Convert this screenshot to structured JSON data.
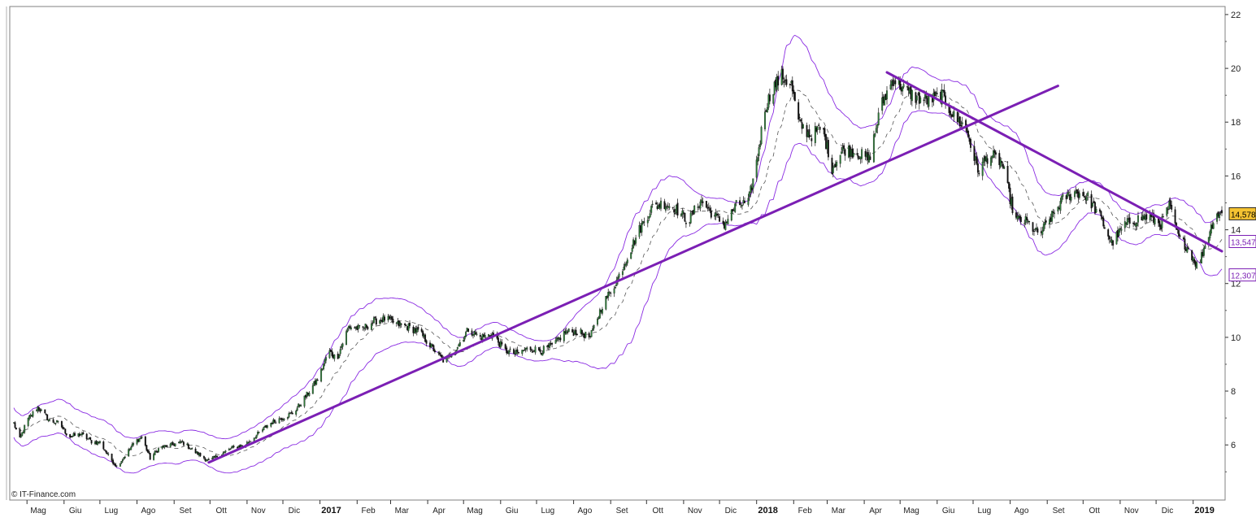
{
  "chart_data": {
    "type": "candlestick",
    "watermark": "© IT-Finance.com",
    "ylim": [
      4,
      22
    ],
    "y_ticks": [
      6,
      8,
      10,
      12,
      14,
      16,
      18,
      20,
      22
    ],
    "x_range": [
      "2016-04-20",
      "2019-01-25"
    ],
    "x_ticks": [
      {
        "date": "2016-05-05",
        "label": "Mag"
      },
      {
        "date": "2016-06-05",
        "label": "Giu"
      },
      {
        "date": "2016-07-05",
        "label": "Lug"
      },
      {
        "date": "2016-08-05",
        "label": "Ago"
      },
      {
        "date": "2016-09-05",
        "label": "Set"
      },
      {
        "date": "2016-10-05",
        "label": "Ott"
      },
      {
        "date": "2016-11-05",
        "label": "Nov"
      },
      {
        "date": "2016-12-05",
        "label": "Dic"
      },
      {
        "date": "2017-01-05",
        "label": "2017",
        "year": true
      },
      {
        "date": "2017-02-05",
        "label": "Feb"
      },
      {
        "date": "2017-03-05",
        "label": "Mar"
      },
      {
        "date": "2017-04-05",
        "label": "Apr"
      },
      {
        "date": "2017-05-05",
        "label": "Mag"
      },
      {
        "date": "2017-06-05",
        "label": "Giu"
      },
      {
        "date": "2017-07-05",
        "label": "Lug"
      },
      {
        "date": "2017-08-05",
        "label": "Ago"
      },
      {
        "date": "2017-09-05",
        "label": "Set"
      },
      {
        "date": "2017-10-05",
        "label": "Ott"
      },
      {
        "date": "2017-11-05",
        "label": "Nov"
      },
      {
        "date": "2017-12-05",
        "label": "Dic"
      },
      {
        "date": "2018-01-05",
        "label": "2018",
        "year": true
      },
      {
        "date": "2018-02-05",
        "label": "Feb"
      },
      {
        "date": "2018-03-05",
        "label": "Mar"
      },
      {
        "date": "2018-04-05",
        "label": "Apr"
      },
      {
        "date": "2018-05-05",
        "label": "Mag"
      },
      {
        "date": "2018-06-05",
        "label": "Giu"
      },
      {
        "date": "2018-07-05",
        "label": "Lug"
      },
      {
        "date": "2018-08-05",
        "label": "Ago"
      },
      {
        "date": "2018-09-05",
        "label": "Set"
      },
      {
        "date": "2018-10-05",
        "label": "Ott"
      },
      {
        "date": "2018-11-05",
        "label": "Nov"
      },
      {
        "date": "2018-12-05",
        "label": "Dic"
      },
      {
        "date": "2019-01-05",
        "label": "2019",
        "year": true
      }
    ],
    "price_path": [
      [
        "2016-04-20",
        6.8
      ],
      [
        "2016-04-25",
        6.2
      ],
      [
        "2016-05-01",
        6.9
      ],
      [
        "2016-05-10",
        7.4
      ],
      [
        "2016-05-20",
        6.9
      ],
      [
        "2016-05-28",
        6.8
      ],
      [
        "2016-06-05",
        6.3
      ],
      [
        "2016-06-15",
        6.4
      ],
      [
        "2016-06-25",
        6.1
      ],
      [
        "2016-07-01",
        6.1
      ],
      [
        "2016-07-08",
        5.6
      ],
      [
        "2016-07-15",
        5.2
      ],
      [
        "2016-07-22",
        5.6
      ],
      [
        "2016-07-30",
        6.1
      ],
      [
        "2016-08-05",
        6.3
      ],
      [
        "2016-08-12",
        5.5
      ],
      [
        "2016-08-20",
        5.9
      ],
      [
        "2016-08-30",
        6.0
      ],
      [
        "2016-09-08",
        6.1
      ],
      [
        "2016-09-20",
        5.7
      ],
      [
        "2016-09-30",
        5.4
      ],
      [
        "2016-10-08",
        5.6
      ],
      [
        "2016-10-20",
        5.9
      ],
      [
        "2016-10-30",
        6.0
      ],
      [
        "2016-11-10",
        6.4
      ],
      [
        "2016-11-20",
        6.8
      ],
      [
        "2016-11-30",
        7.0
      ],
      [
        "2016-12-10",
        7.2
      ],
      [
        "2016-12-20",
        7.8
      ],
      [
        "2016-12-31",
        8.5
      ],
      [
        "2017-01-08",
        9.5
      ],
      [
        "2017-01-15",
        9.2
      ],
      [
        "2017-01-25",
        10.4
      ],
      [
        "2017-02-05",
        10.3
      ],
      [
        "2017-02-15",
        10.6
      ],
      [
        "2017-02-25",
        10.7
      ],
      [
        "2017-03-05",
        10.5
      ],
      [
        "2017-03-15",
        10.4
      ],
      [
        "2017-03-25",
        10.2
      ],
      [
        "2017-04-05",
        9.6
      ],
      [
        "2017-04-15",
        9.1
      ],
      [
        "2017-04-25",
        9.6
      ],
      [
        "2017-05-05",
        10.3
      ],
      [
        "2017-05-15",
        10.0
      ],
      [
        "2017-05-25",
        10.1
      ],
      [
        "2017-06-05",
        9.5
      ],
      [
        "2017-06-15",
        9.4
      ],
      [
        "2017-06-25",
        9.6
      ],
      [
        "2017-07-05",
        9.5
      ],
      [
        "2017-07-15",
        9.7
      ],
      [
        "2017-07-25",
        10.2
      ],
      [
        "2017-08-05",
        10.2
      ],
      [
        "2017-08-15",
        10.0
      ],
      [
        "2017-08-25",
        11.2
      ],
      [
        "2017-09-05",
        12.0
      ],
      [
        "2017-09-15",
        13.0
      ],
      [
        "2017-09-25",
        14.0
      ],
      [
        "2017-10-05",
        14.8
      ],
      [
        "2017-10-15",
        15.0
      ],
      [
        "2017-10-25",
        14.8
      ],
      [
        "2017-11-05",
        14.3
      ],
      [
        "2017-11-15",
        15.1
      ],
      [
        "2017-11-25",
        14.6
      ],
      [
        "2017-12-05",
        14.2
      ],
      [
        "2017-12-15",
        14.9
      ],
      [
        "2017-12-25",
        15.0
      ],
      [
        "2018-01-01",
        16.5
      ],
      [
        "2018-01-08",
        18.5
      ],
      [
        "2018-01-15",
        19.3
      ],
      [
        "2018-01-22",
        19.7
      ],
      [
        "2018-01-30",
        19.4
      ],
      [
        "2018-02-05",
        18.0
      ],
      [
        "2018-02-15",
        17.5
      ],
      [
        "2018-02-25",
        17.8
      ],
      [
        "2018-03-05",
        16.3
      ],
      [
        "2018-03-15",
        17.0
      ],
      [
        "2018-03-25",
        16.9
      ],
      [
        "2018-04-05",
        16.6
      ],
      [
        "2018-04-15",
        18.6
      ],
      [
        "2018-04-25",
        19.6
      ],
      [
        "2018-05-05",
        19.2
      ],
      [
        "2018-05-15",
        18.9
      ],
      [
        "2018-05-25",
        18.8
      ],
      [
        "2018-06-05",
        19.0
      ],
      [
        "2018-06-15",
        18.2
      ],
      [
        "2018-06-25",
        17.8
      ],
      [
        "2018-07-05",
        16.2
      ],
      [
        "2018-07-15",
        16.8
      ],
      [
        "2018-07-25",
        16.5
      ],
      [
        "2018-08-05",
        14.4
      ],
      [
        "2018-08-15",
        14.3
      ],
      [
        "2018-08-25",
        13.8
      ],
      [
        "2018-09-05",
        14.5
      ],
      [
        "2018-09-15",
        15.2
      ],
      [
        "2018-09-25",
        15.4
      ],
      [
        "2018-10-05",
        15.2
      ],
      [
        "2018-10-15",
        14.5
      ],
      [
        "2018-10-25",
        13.5
      ],
      [
        "2018-11-05",
        14.2
      ],
      [
        "2018-11-15",
        14.4
      ],
      [
        "2018-11-25",
        14.5
      ],
      [
        "2018-12-05",
        14.2
      ],
      [
        "2018-12-12",
        14.9
      ],
      [
        "2018-12-20",
        13.7
      ],
      [
        "2018-12-28",
        13.3
      ],
      [
        "2019-01-05",
        12.6
      ],
      [
        "2019-01-12",
        13.6
      ],
      [
        "2019-01-20",
        14.6
      ]
    ],
    "bollinger_width": [
      [
        "2016-04-20",
        0.55
      ],
      [
        "2016-07-01",
        0.7
      ],
      [
        "2016-09-20",
        0.55
      ],
      [
        "2016-11-30",
        0.8
      ],
      [
        "2017-01-20",
        1.3
      ],
      [
        "2017-04-01",
        0.6
      ],
      [
        "2017-07-15",
        0.35
      ],
      [
        "2017-09-20",
        2.2
      ],
      [
        "2017-11-20",
        0.5
      ],
      [
        "2017-12-25",
        0.4
      ],
      [
        "2018-01-25",
        2.2
      ],
      [
        "2018-03-20",
        1.1
      ],
      [
        "2018-04-25",
        1.0
      ],
      [
        "2018-06-05",
        0.6
      ],
      [
        "2018-08-10",
        1.5
      ],
      [
        "2018-10-05",
        0.6
      ],
      [
        "2018-12-05",
        0.55
      ],
      [
        "2019-01-25",
        1.1
      ]
    ],
    "trendlines": [
      {
        "from": [
          "2016-09-30",
          5.35
        ],
        "to": [
          "2018-09-10",
          19.35
        ],
        "color": "#7b1fb4"
      },
      {
        "from": [
          "2018-04-20",
          19.85
        ],
        "to": [
          "2019-01-25",
          13.2
        ],
        "color": "#7b1fb4"
      }
    ],
    "price_labels": [
      {
        "label": "14,578",
        "value": 14.578,
        "bg": "#f5c332",
        "border": "#222",
        "color": "#000"
      },
      {
        "label": "13,547",
        "value": 13.547,
        "bg": "#ffffff",
        "border": "#7b1fb4",
        "color": "#7b1fb4"
      },
      {
        "label": "12,307",
        "value": 12.307,
        "bg": "#ffffff",
        "border": "#7b1fb4",
        "color": "#7b1fb4"
      }
    ],
    "colors": {
      "up": "#2f7f3a",
      "down": "#111111",
      "band": "#8a2be2",
      "frame": "#888888"
    }
  }
}
